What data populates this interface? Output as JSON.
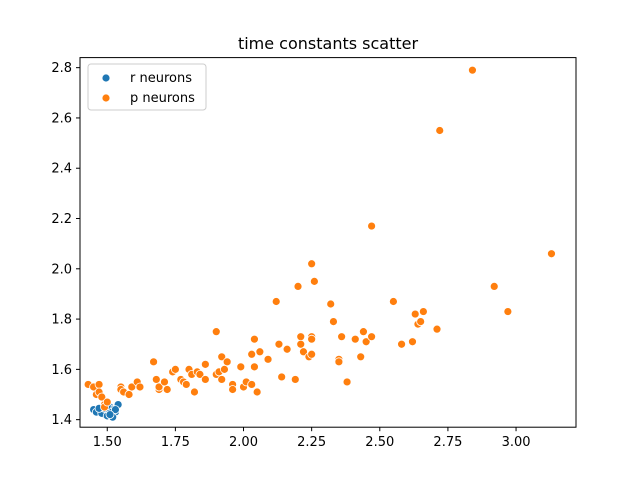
{
  "chart_data": {
    "type": "scatter",
    "title": "time constants scatter",
    "xlabel": "",
    "ylabel": "",
    "xlim": [
      1.4,
      3.22
    ],
    "ylim": [
      1.37,
      2.84
    ],
    "xticks": [
      1.5,
      1.75,
      2.0,
      2.25,
      2.5,
      2.75,
      3.0
    ],
    "xtick_labels": [
      "1.50",
      "1.75",
      "2.00",
      "2.25",
      "2.50",
      "2.75",
      "3.00"
    ],
    "yticks": [
      1.4,
      1.6,
      1.8,
      2.0,
      2.2,
      2.4,
      2.6,
      2.8
    ],
    "ytick_labels": [
      "1.4",
      "1.6",
      "1.8",
      "2.0",
      "2.2",
      "2.4",
      "2.6",
      "2.8"
    ],
    "grid": false,
    "legend_position": "top-left",
    "series": [
      {
        "name": "r neurons",
        "color": "#1f77b4",
        "points": [
          [
            1.45,
            1.44
          ],
          [
            1.47,
            1.43
          ],
          [
            1.48,
            1.44
          ],
          [
            1.49,
            1.42
          ],
          [
            1.5,
            1.43
          ],
          [
            1.51,
            1.45
          ],
          [
            1.52,
            1.42
          ],
          [
            1.52,
            1.44
          ],
          [
            1.53,
            1.43
          ],
          [
            1.54,
            1.46
          ],
          [
            1.46,
            1.43
          ],
          [
            1.48,
            1.425
          ],
          [
            1.49,
            1.445
          ],
          [
            1.5,
            1.415
          ],
          [
            1.51,
            1.43
          ],
          [
            1.52,
            1.41
          ],
          [
            1.53,
            1.44
          ],
          [
            1.47,
            1.445
          ],
          [
            1.5,
            1.455
          ],
          [
            1.51,
            1.42
          ]
        ]
      },
      {
        "name": "p neurons",
        "color": "#ff7f0e",
        "points": [
          [
            1.43,
            1.54
          ],
          [
            1.45,
            1.53
          ],
          [
            1.46,
            1.5
          ],
          [
            1.47,
            1.54
          ],
          [
            1.47,
            1.51
          ],
          [
            1.48,
            1.49
          ],
          [
            1.49,
            1.46
          ],
          [
            1.49,
            1.45
          ],
          [
            1.5,
            1.47
          ],
          [
            1.55,
            1.53
          ],
          [
            1.55,
            1.52
          ],
          [
            1.56,
            1.51
          ],
          [
            1.58,
            1.5
          ],
          [
            1.59,
            1.53
          ],
          [
            1.61,
            1.55
          ],
          [
            1.62,
            1.53
          ],
          [
            1.67,
            1.63
          ],
          [
            1.68,
            1.56
          ],
          [
            1.69,
            1.52
          ],
          [
            1.69,
            1.53
          ],
          [
            1.71,
            1.55
          ],
          [
            1.72,
            1.52
          ],
          [
            1.74,
            1.59
          ],
          [
            1.75,
            1.6
          ],
          [
            1.77,
            1.56
          ],
          [
            1.78,
            1.55
          ],
          [
            1.79,
            1.54
          ],
          [
            1.8,
            1.6
          ],
          [
            1.81,
            1.58
          ],
          [
            1.82,
            1.51
          ],
          [
            1.83,
            1.59
          ],
          [
            1.84,
            1.58
          ],
          [
            1.86,
            1.62
          ],
          [
            1.86,
            1.56
          ],
          [
            1.9,
            1.75
          ],
          [
            1.9,
            1.58
          ],
          [
            1.91,
            1.59
          ],
          [
            1.92,
            1.65
          ],
          [
            1.92,
            1.56
          ],
          [
            1.93,
            1.6
          ],
          [
            1.94,
            1.63
          ],
          [
            1.96,
            1.54
          ],
          [
            1.96,
            1.52
          ],
          [
            1.99,
            1.61
          ],
          [
            2.0,
            1.53
          ],
          [
            2.01,
            1.55
          ],
          [
            2.03,
            1.66
          ],
          [
            2.03,
            1.54
          ],
          [
            2.04,
            1.61
          ],
          [
            2.04,
            1.72
          ],
          [
            2.05,
            1.51
          ],
          [
            2.06,
            1.67
          ],
          [
            2.09,
            1.64
          ],
          [
            2.12,
            1.87
          ],
          [
            2.13,
            1.7
          ],
          [
            2.14,
            1.57
          ],
          [
            2.16,
            1.68
          ],
          [
            2.19,
            1.56
          ],
          [
            2.2,
            1.93
          ],
          [
            2.21,
            1.73
          ],
          [
            2.21,
            1.7
          ],
          [
            2.22,
            1.67
          ],
          [
            2.24,
            1.65
          ],
          [
            2.25,
            1.73
          ],
          [
            2.25,
            2.02
          ],
          [
            2.25,
            1.72
          ],
          [
            2.25,
            1.66
          ],
          [
            2.26,
            1.95
          ],
          [
            2.32,
            1.86
          ],
          [
            2.33,
            1.79
          ],
          [
            2.35,
            1.64
          ],
          [
            2.35,
            1.63
          ],
          [
            2.36,
            1.73
          ],
          [
            2.38,
            1.55
          ],
          [
            2.41,
            1.72
          ],
          [
            2.43,
            1.65
          ],
          [
            2.44,
            1.75
          ],
          [
            2.45,
            1.71
          ],
          [
            2.47,
            2.17
          ],
          [
            2.47,
            1.73
          ],
          [
            2.55,
            1.87
          ],
          [
            2.58,
            1.7
          ],
          [
            2.62,
            1.71
          ],
          [
            2.63,
            1.82
          ],
          [
            2.64,
            1.78
          ],
          [
            2.65,
            1.79
          ],
          [
            2.66,
            1.83
          ],
          [
            2.71,
            1.76
          ],
          [
            2.72,
            2.55
          ],
          [
            2.84,
            2.79
          ],
          [
            2.92,
            1.93
          ],
          [
            2.97,
            1.83
          ],
          [
            3.13,
            2.06
          ]
        ]
      }
    ]
  }
}
